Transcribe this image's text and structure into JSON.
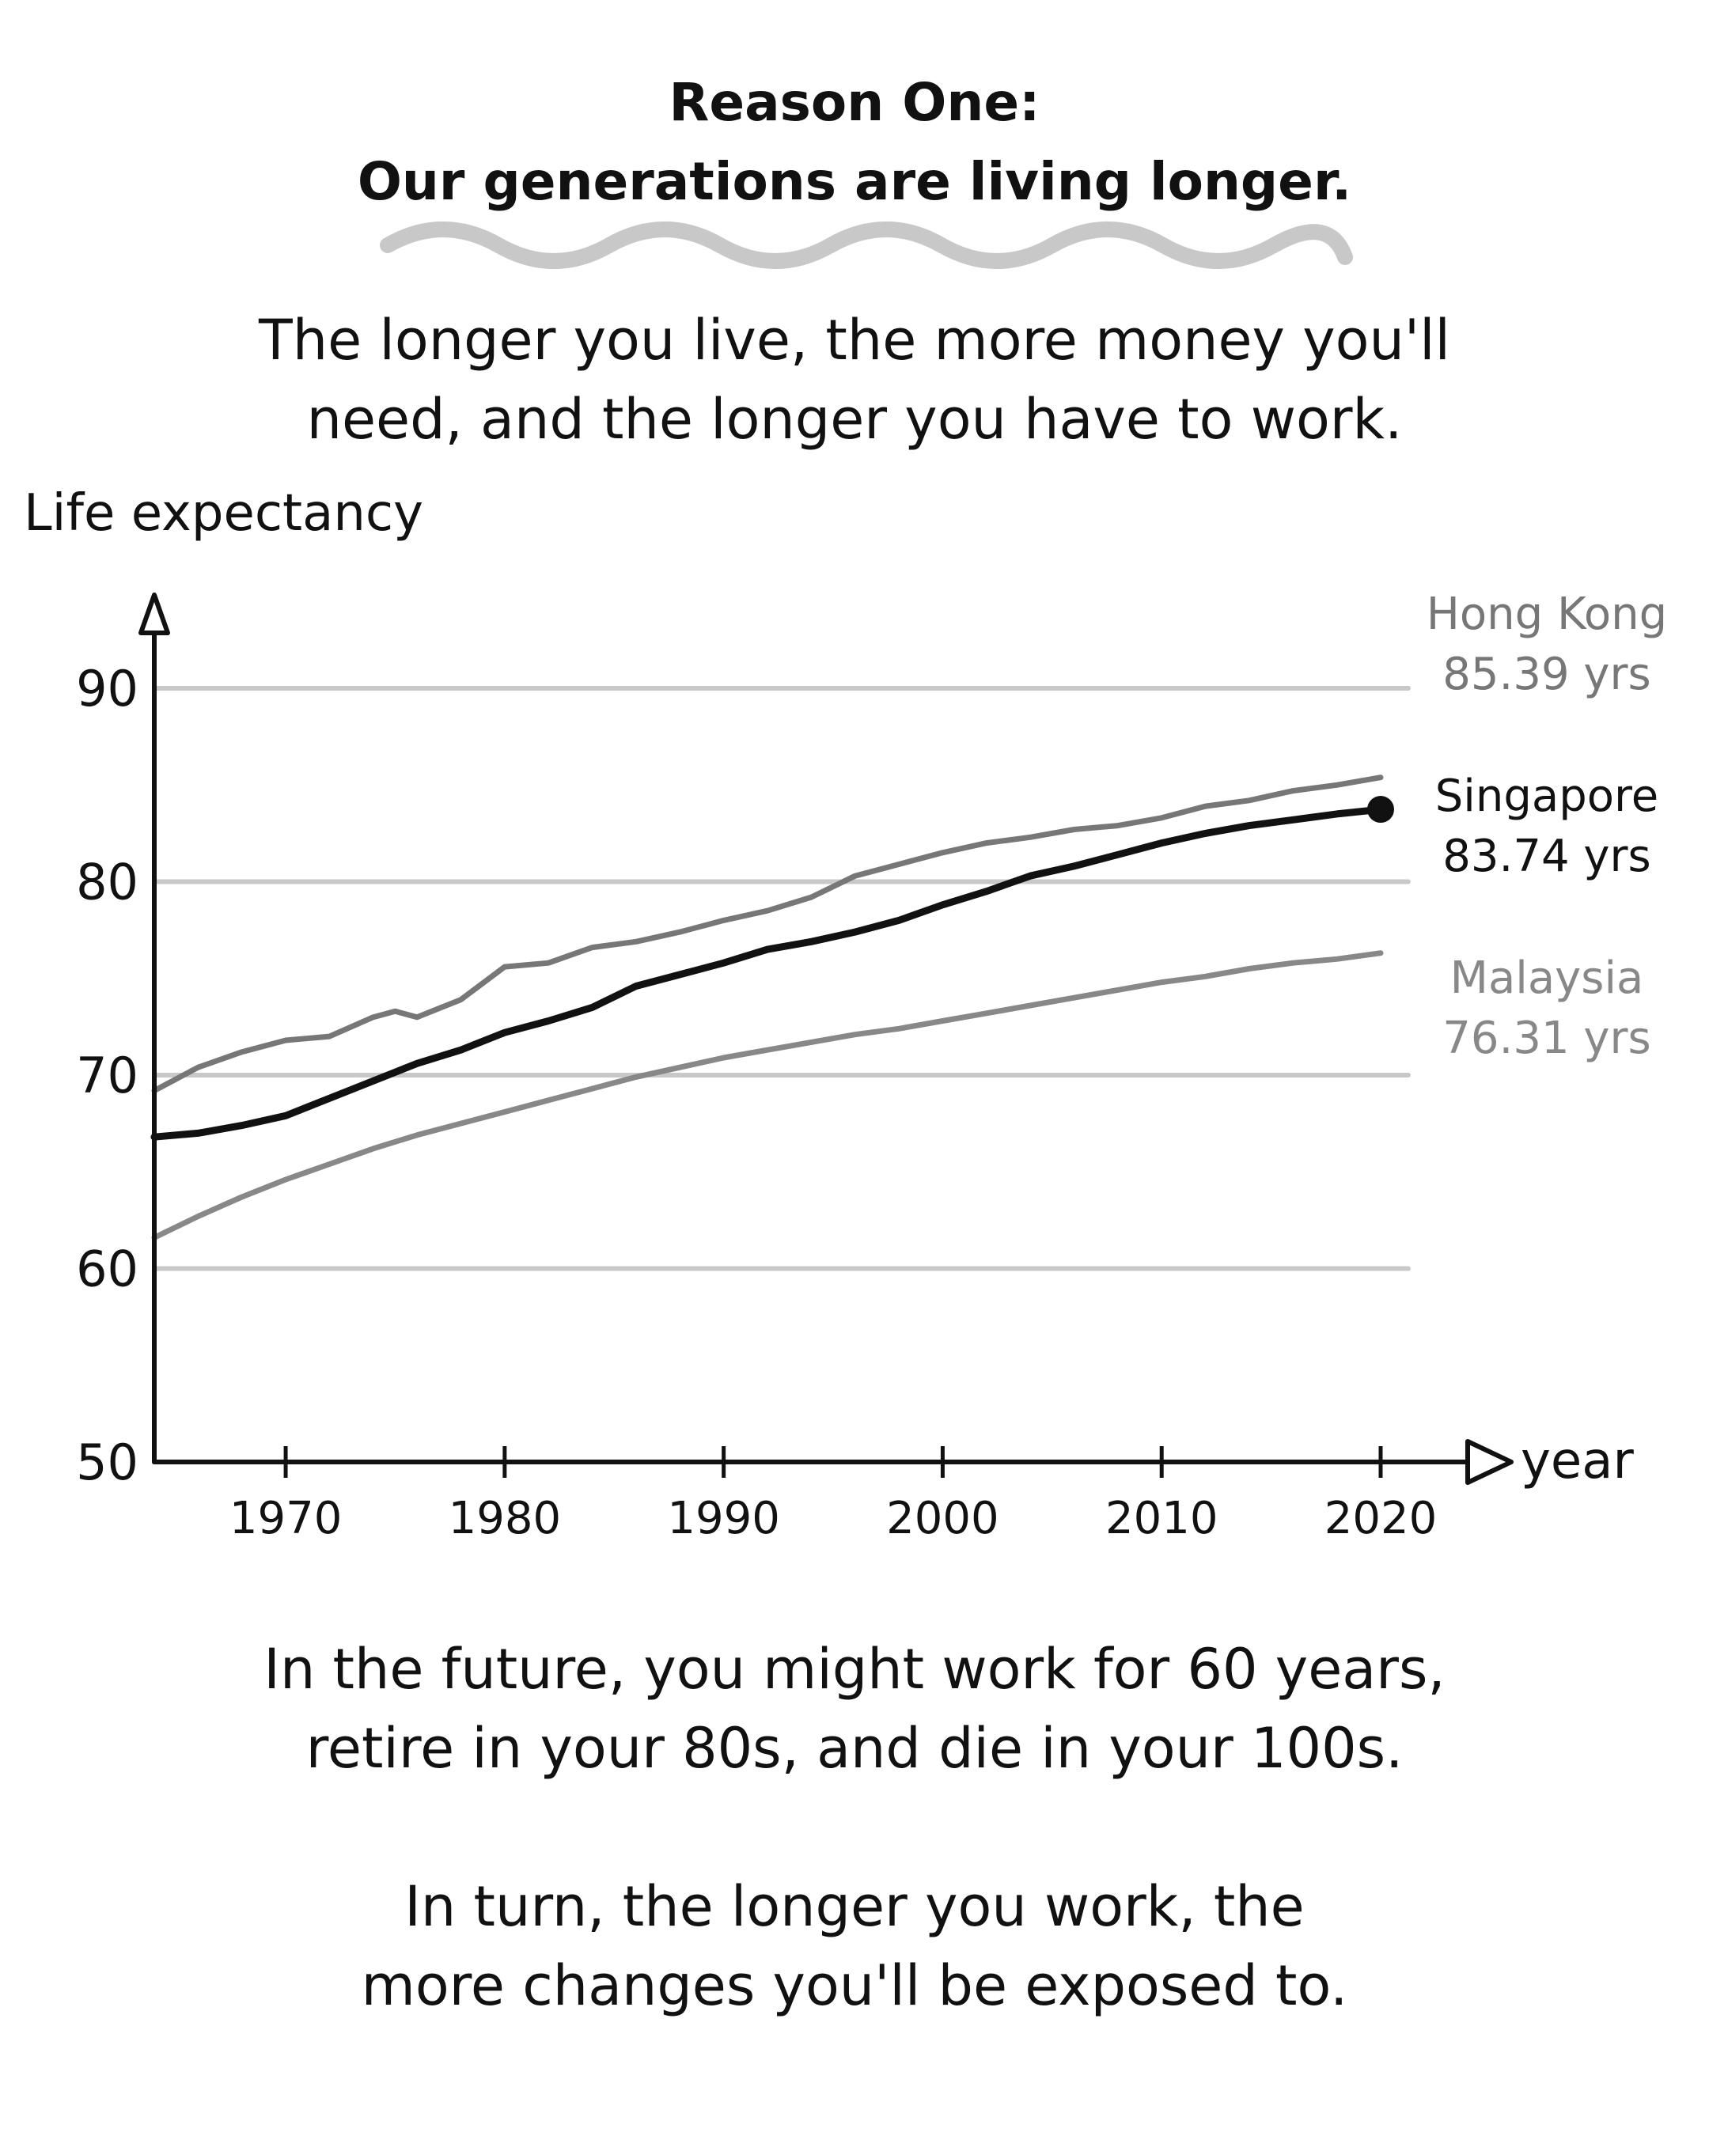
{
  "header": {
    "title_line1": "Reason One:",
    "title_line2": "Our generations are living longer."
  },
  "intro": {
    "line1": "The longer you live, the more money you'll",
    "line2": "need, and the longer you have to work."
  },
  "chart_data": {
    "type": "line",
    "ylabel": "Life expectancy",
    "xlabel": "year",
    "ylim": [
      50,
      90
    ],
    "xlim": [
      1964,
      2020
    ],
    "yticks": [
      90,
      80,
      70,
      60,
      50
    ],
    "xticks": [
      1970,
      1980,
      1990,
      2000,
      2010,
      2020
    ],
    "grid": true,
    "series": [
      {
        "name": "Hong Kong",
        "label": "85.39 yrs",
        "color": "#777777",
        "x": [
          1964,
          1966,
          1968,
          1970,
          1972,
          1974,
          1975,
          1976,
          1978,
          1980,
          1982,
          1984,
          1986,
          1988,
          1990,
          1992,
          1994,
          1996,
          1998,
          2000,
          2002,
          2004,
          2006,
          2008,
          2010,
          2012,
          2014,
          2016,
          2018,
          2020
        ],
        "y": [
          69.2,
          70.4,
          71.2,
          71.8,
          72.0,
          73.0,
          73.3,
          73.0,
          73.9,
          75.6,
          75.8,
          76.6,
          76.9,
          77.4,
          78.0,
          78.5,
          79.2,
          80.3,
          80.9,
          81.5,
          82.0,
          82.3,
          82.7,
          82.9,
          83.3,
          83.9,
          84.2,
          84.7,
          85.0,
          85.39
        ]
      },
      {
        "name": "Singapore",
        "label": "83.74 yrs",
        "color": "#111111",
        "x": [
          1964,
          1966,
          1968,
          1970,
          1972,
          1974,
          1976,
          1978,
          1980,
          1982,
          1984,
          1986,
          1988,
          1990,
          1992,
          1994,
          1996,
          1998,
          2000,
          2002,
          2004,
          2006,
          2008,
          2010,
          2012,
          2014,
          2016,
          2018,
          2020
        ],
        "y": [
          66.8,
          67.0,
          67.4,
          67.9,
          68.8,
          69.7,
          70.6,
          71.3,
          72.2,
          72.8,
          73.5,
          74.6,
          75.2,
          75.8,
          76.5,
          76.9,
          77.4,
          78.0,
          78.8,
          79.5,
          80.3,
          80.8,
          81.4,
          82.0,
          82.5,
          82.9,
          83.2,
          83.5,
          83.74
        ]
      },
      {
        "name": "Malaysia",
        "label": "76.31 yrs",
        "color": "#888888",
        "x": [
          1964,
          1966,
          1968,
          1970,
          1972,
          1974,
          1976,
          1978,
          1980,
          1982,
          1984,
          1986,
          1988,
          1990,
          1992,
          1994,
          1996,
          1998,
          2000,
          2002,
          2004,
          2006,
          2008,
          2010,
          2012,
          2014,
          2016,
          2018,
          2020
        ],
        "y": [
          61.6,
          62.7,
          63.7,
          64.6,
          65.4,
          66.2,
          66.9,
          67.5,
          68.1,
          68.7,
          69.3,
          69.9,
          70.4,
          70.9,
          71.3,
          71.7,
          72.1,
          72.4,
          72.8,
          73.2,
          73.6,
          74.0,
          74.4,
          74.8,
          75.1,
          75.5,
          75.8,
          76.0,
          76.31
        ]
      }
    ]
  },
  "outro": {
    "para1_line1": "In the future, you might work for 60 years,",
    "para1_line2": "retire in your 80s, and die in your 100s.",
    "para2_line1": "In turn, the longer you work, the",
    "para2_line2": "more changes you'll be exposed to."
  }
}
